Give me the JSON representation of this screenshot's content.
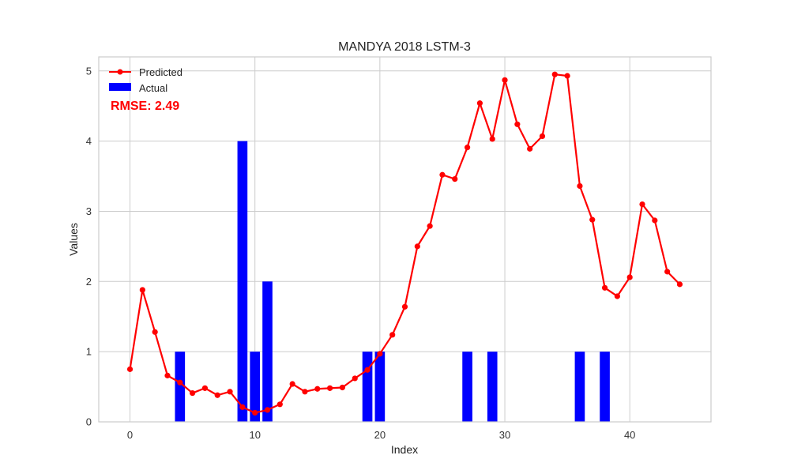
{
  "chart_data": {
    "type": "line",
    "title": "MANDYA 2018 LSTM-3",
    "xlabel": "Index",
    "ylabel": "Values",
    "xlim": [
      -2.5,
      46.5
    ],
    "ylim": [
      0,
      5.2
    ],
    "xticks": [
      0,
      10,
      20,
      30,
      40
    ],
    "yticks": [
      0,
      1,
      2,
      3,
      4,
      5
    ],
    "grid": true,
    "legend_position": "top-left",
    "annotation": "RMSE: 2.49",
    "colors": {
      "predicted": "#ff0000",
      "actual": "#0000ff",
      "annotation": "#ff0000",
      "grid": "#cccccc",
      "frame": "#cccccc"
    },
    "series": [
      {
        "name": "Predicted",
        "kind": "line",
        "x": [
          0,
          1,
          2,
          3,
          4,
          5,
          6,
          7,
          8,
          9,
          10,
          11,
          12,
          13,
          14,
          15,
          16,
          17,
          18,
          19,
          20,
          21,
          22,
          23,
          24,
          25,
          26,
          27,
          28,
          29,
          30,
          31,
          32,
          33,
          34,
          35,
          36,
          37,
          38,
          39,
          40,
          41,
          42,
          43,
          44
        ],
        "values": [
          0.75,
          1.88,
          1.28,
          0.66,
          0.56,
          0.41,
          0.48,
          0.38,
          0.43,
          0.21,
          0.13,
          0.17,
          0.25,
          0.54,
          0.43,
          0.47,
          0.48,
          0.49,
          0.62,
          0.74,
          0.97,
          1.24,
          1.64,
          2.5,
          2.79,
          3.52,
          3.46,
          3.91,
          4.54,
          4.03,
          4.87,
          4.24,
          3.89,
          4.07,
          4.95,
          4.93,
          3.36,
          2.88,
          1.91,
          1.79,
          2.06,
          3.1,
          2.87,
          2.14,
          1.96
        ]
      },
      {
        "name": "Actual",
        "kind": "bar",
        "x": [
          4,
          9,
          10,
          11,
          19,
          20,
          27,
          29,
          36,
          38
        ],
        "values": [
          1,
          4,
          1,
          2,
          1,
          1,
          1,
          1,
          1,
          1
        ]
      }
    ]
  }
}
